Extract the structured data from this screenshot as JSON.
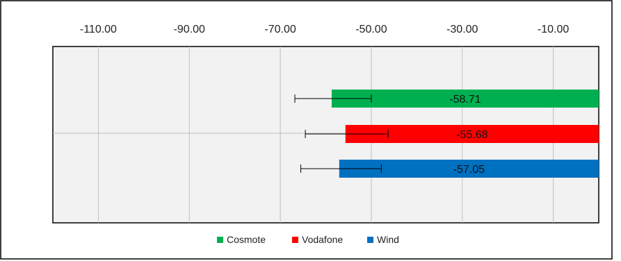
{
  "chart_data": {
    "type": "bar",
    "orientation": "horizontal",
    "title": "",
    "xlabel": "",
    "ylabel": "",
    "x_axis_position": "top",
    "xlim": [
      -120,
      0
    ],
    "x_ticks": [
      "-110.00",
      "-90.00",
      "-70.00",
      "-50.00",
      "-30.00",
      "-10.00"
    ],
    "x_tick_values": [
      -110,
      -90,
      -70,
      -50,
      -30,
      -10
    ],
    "grid": true,
    "legend_position": "bottom",
    "categories": [
      "Cosmote",
      "Vodafone",
      "Wind"
    ],
    "series": [
      {
        "name": "Cosmote",
        "value": -58.71,
        "label": "-58.71",
        "error_low": -66.8,
        "error_high": -50.0,
        "color": "#00b050"
      },
      {
        "name": "Vodafone",
        "value": -55.68,
        "label": "-55.68",
        "error_low": -64.5,
        "error_high": -46.3,
        "color": "#ff0000"
      },
      {
        "name": "Wind",
        "value": -57.05,
        "label": "-57.05",
        "error_low": -65.5,
        "error_high": -47.8,
        "color": "#0070c0"
      }
    ]
  }
}
